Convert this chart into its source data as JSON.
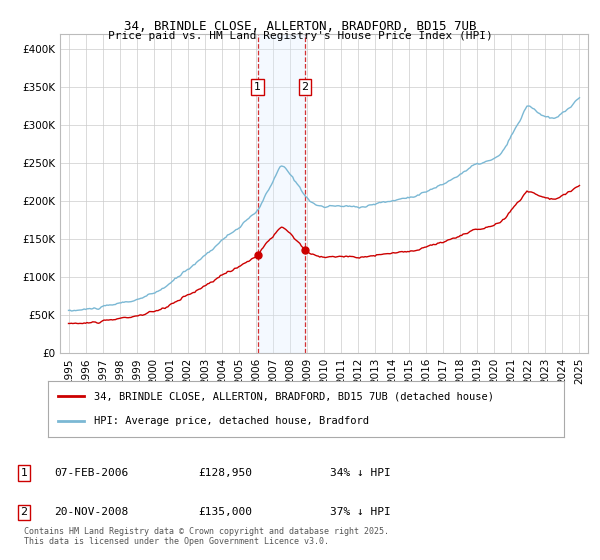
{
  "title": "34, BRINDLE CLOSE, ALLERTON, BRADFORD, BD15 7UB",
  "subtitle": "Price paid vs. HM Land Registry's House Price Index (HPI)",
  "legend_line1": "34, BRINDLE CLOSE, ALLERTON, BRADFORD, BD15 7UB (detached house)",
  "legend_line2": "HPI: Average price, detached house, Bradford",
  "footnote": "Contains HM Land Registry data © Crown copyright and database right 2025.\nThis data is licensed under the Open Government Licence v3.0.",
  "transaction1_date": "07-FEB-2006",
  "transaction1_price": "£128,950",
  "transaction1_hpi": "34% ↓ HPI",
  "transaction1_year": 2006.1,
  "transaction1_value": 128950,
  "transaction2_date": "20-NOV-2008",
  "transaction2_price": "£135,000",
  "transaction2_hpi": "37% ↓ HPI",
  "transaction2_year": 2008.89,
  "transaction2_value": 135000,
  "hpi_color": "#7bb8d4",
  "price_color": "#cc0000",
  "shade_color": "#ddeeff",
  "vline_color": "#cc0000",
  "bg_color": "#ffffff",
  "grid_color": "#cccccc",
  "ylim_min": 0,
  "ylim_max": 420000,
  "xlim_min": 1994.5,
  "xlim_max": 2025.5
}
